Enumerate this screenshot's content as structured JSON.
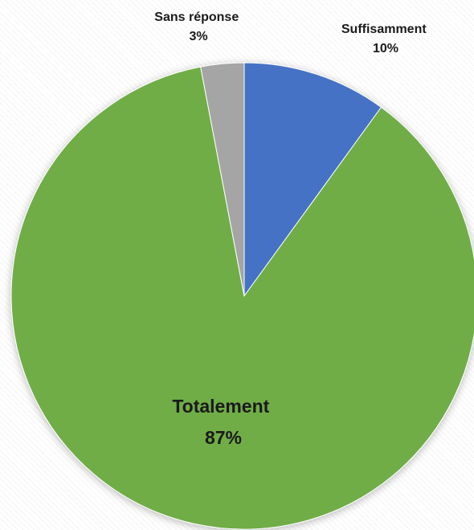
{
  "chart_data": {
    "type": "pie",
    "title": "",
    "start_angle_deg": 0,
    "direction": "clockwise",
    "slices": [
      {
        "label": "Suffisamment",
        "value": 10,
        "value_label": "10%",
        "color": "#4472C4"
      },
      {
        "label": "Totalement",
        "value": 87,
        "value_label": "87%",
        "color": "#70AD47"
      },
      {
        "label": "Sans réponse",
        "value": 3,
        "value_label": "3%",
        "color": "#A5A5A5"
      }
    ]
  }
}
